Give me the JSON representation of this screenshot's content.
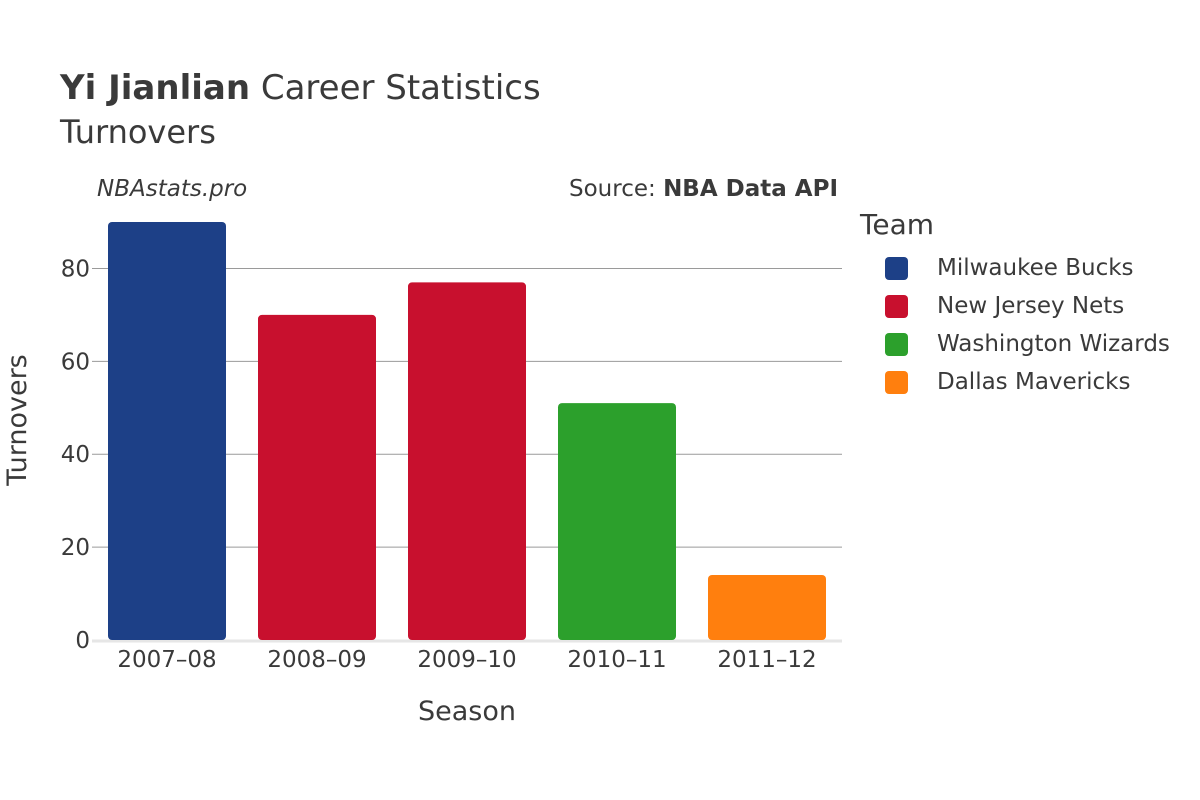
{
  "title_bold": "Yi Jianlian",
  "title_rest": " Career Statistics",
  "subtitle": "Turnovers",
  "watermark": "NBAstats.pro",
  "source_prefix": "Source: ",
  "source_name": "NBA Data API",
  "legend": {
    "title": "Team",
    "items": [
      {
        "label": "Milwaukee Bucks",
        "color": "#1d4087"
      },
      {
        "label": "New Jersey Nets",
        "color": "#c8102e"
      },
      {
        "label": "Washington Wizards",
        "color": "#2ca02c"
      },
      {
        "label": "Dallas Mavericks",
        "color": "#ff7f0e"
      }
    ]
  },
  "chart_data": {
    "type": "bar",
    "title": "Yi Jianlian Career Statistics",
    "subtitle": "Turnovers",
    "xlabel": "Season",
    "ylabel": "Turnovers",
    "ylim": [
      0,
      90
    ],
    "yticks": [
      0,
      20,
      40,
      60,
      80
    ],
    "grid": true,
    "legend_position": "right",
    "categories": [
      "2007–08",
      "2008–09",
      "2009–10",
      "2010–11",
      "2011–12"
    ],
    "values": [
      90,
      70,
      77,
      51,
      14
    ],
    "teams": [
      "Milwaukee Bucks",
      "New Jersey Nets",
      "New Jersey Nets",
      "Washington Wizards",
      "Dallas Mavericks"
    ],
    "colors": [
      "#1d4087",
      "#c8102e",
      "#c8102e",
      "#2ca02c",
      "#ff7f0e"
    ]
  }
}
